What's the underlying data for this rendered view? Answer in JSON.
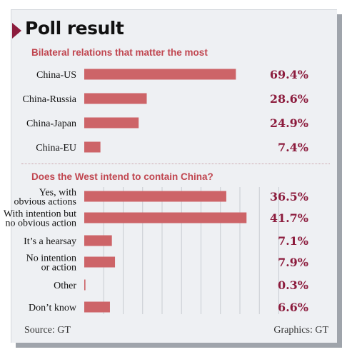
{
  "title": "Poll result",
  "source": "Source: GT",
  "credit": "Graphics: GT",
  "colors": {
    "bar": "#cd6468",
    "accent": "#8c1c3d",
    "heading": "#c0454f",
    "background": "#eef0f3"
  },
  "chart_data": [
    {
      "type": "bar",
      "orientation": "horizontal",
      "title": "Bilateral relations that matter the most",
      "categories": [
        "China-US",
        "China-Russia",
        "China-Japan",
        "China-EU"
      ],
      "values": [
        69.4,
        28.6,
        24.9,
        7.4
      ],
      "value_labels": [
        "69.4%",
        "28.6%",
        "24.9%",
        "7.4%"
      ],
      "xlim": [
        0,
        100
      ],
      "grid": false,
      "legend": "none"
    },
    {
      "type": "bar",
      "orientation": "horizontal",
      "title": "Does the West intend to contain China?",
      "categories": [
        [
          "Yes, with",
          "obvious actions"
        ],
        [
          "With intention but",
          "no obvious action"
        ],
        [
          "It’s a hearsay"
        ],
        [
          "No intention",
          "or action"
        ],
        [
          "Other"
        ],
        [
          "Don’t know"
        ]
      ],
      "values": [
        36.5,
        41.7,
        7.1,
        7.9,
        0.3,
        6.6
      ],
      "value_labels": [
        "36.5%",
        "41.7%",
        "7.1%",
        "7.9%",
        "0.3%",
        "6.6%"
      ],
      "xlim": [
        0,
        50
      ],
      "grid": true,
      "legend": "none"
    }
  ]
}
